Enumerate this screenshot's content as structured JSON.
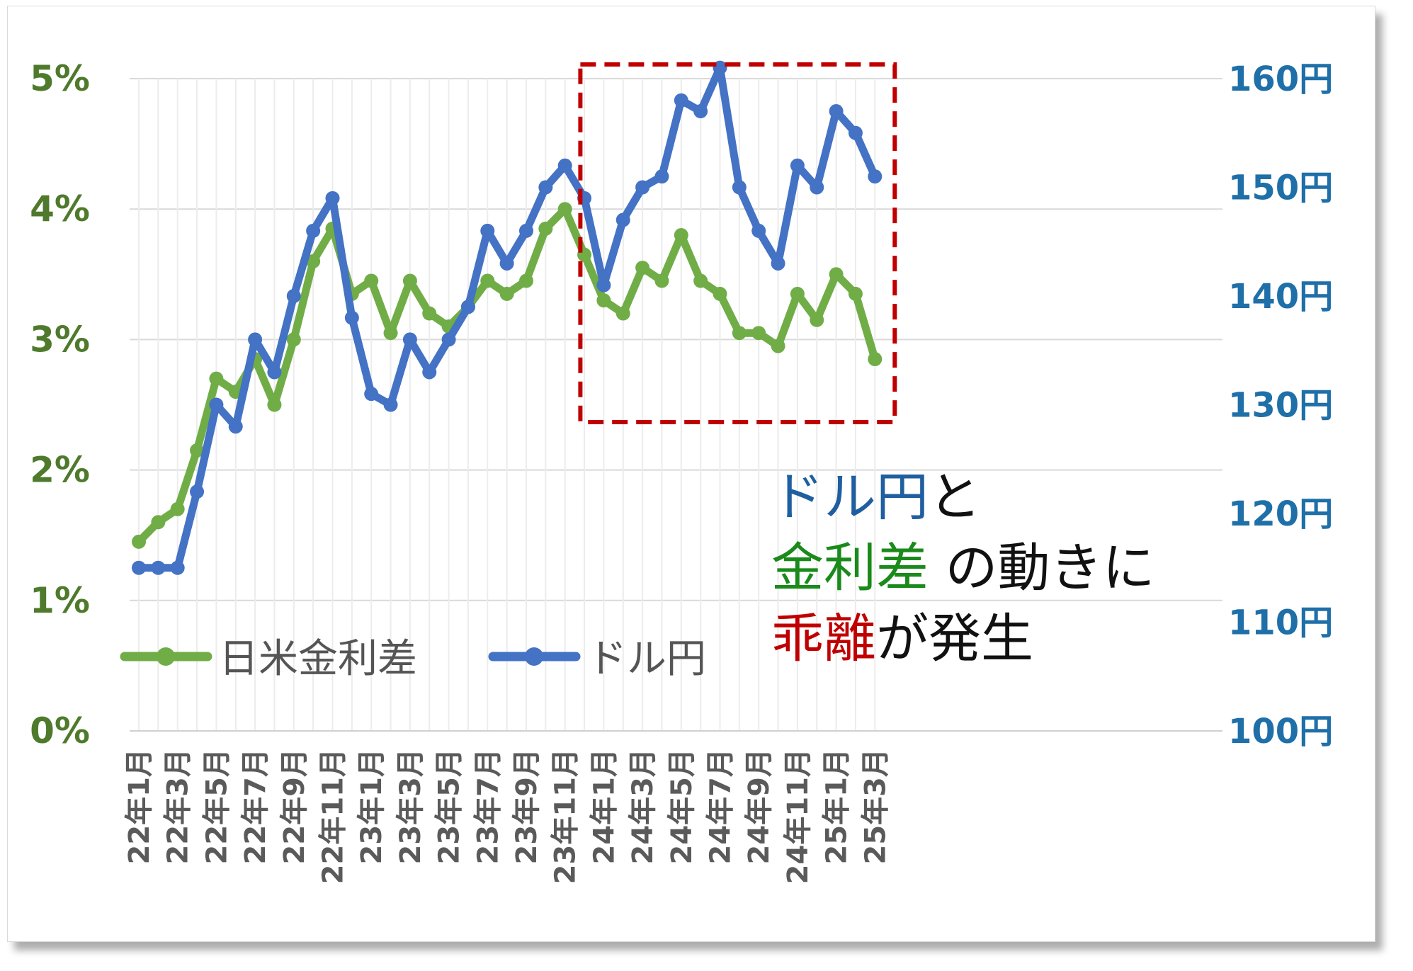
{
  "chart_data": {
    "type": "line",
    "title": "",
    "xlabel": "",
    "ylabel_left": "",
    "ylabel_right": "",
    "x": [
      "22年1月",
      "22年2月",
      "22年3月",
      "22年4月",
      "22年5月",
      "22年6月",
      "22年7月",
      "22年8月",
      "22年9月",
      "22年10月",
      "22年11月",
      "22年12月",
      "23年1月",
      "23年2月",
      "23年3月",
      "23年4月",
      "23年5月",
      "23年6月",
      "23年7月",
      "23年8月",
      "23年9月",
      "23年10月",
      "23年11月",
      "23年12月",
      "24年1月",
      "24年2月",
      "24年3月",
      "24年4月",
      "24年5月",
      "24年6月",
      "24年7月",
      "24年8月",
      "24年9月",
      "24年10月",
      "24年11月",
      "24年12月",
      "25年1月",
      "25年2月",
      "25年3月"
    ],
    "x_tick_labels": [
      "22年1月",
      "22年3月",
      "22年5月",
      "22年7月",
      "22年9月",
      "22年11月",
      "23年1月",
      "23年3月",
      "23年5月",
      "23年7月",
      "23年9月",
      "23年11月",
      "24年1月",
      "24年3月",
      "24年5月",
      "24年7月",
      "24年9月",
      "24年11月",
      "25年1月",
      "25年3月"
    ],
    "y_left_ticks": [
      "0%",
      "1%",
      "2%",
      "3%",
      "4%",
      "5%"
    ],
    "y_left_range": [
      0,
      5
    ],
    "y_right_ticks": [
      "100円",
      "110円",
      "120円",
      "130円",
      "140円",
      "150円",
      "160円"
    ],
    "y_right_range": [
      100,
      160
    ],
    "grid": true,
    "legend_position": "bottom-left",
    "series": [
      {
        "name": "日米金利差",
        "axis": "left",
        "color": "#70ad47",
        "values": [
          1.45,
          1.6,
          1.7,
          2.15,
          2.7,
          2.6,
          2.85,
          2.5,
          3.0,
          3.6,
          3.85,
          3.35,
          3.45,
          3.05,
          3.45,
          3.2,
          3.1,
          3.25,
          3.45,
          3.35,
          3.45,
          3.85,
          4.0,
          3.65,
          3.3,
          3.2,
          3.55,
          3.45,
          3.8,
          3.45,
          3.35,
          3.05,
          3.05,
          2.95,
          3.35,
          3.15,
          3.5,
          3.35,
          2.85
        ]
      },
      {
        "name": "ドル円",
        "axis": "right",
        "color": "#4472c4",
        "values": [
          115,
          115,
          115,
          122,
          130,
          128,
          136,
          133,
          140,
          146,
          149,
          138,
          131,
          130,
          136,
          133,
          136,
          139,
          146,
          143,
          146,
          150,
          152,
          149,
          141,
          147,
          150,
          151,
          158,
          157,
          161,
          150,
          146,
          143,
          152,
          150,
          157,
          155,
          151
        ]
      }
    ],
    "annotation": {
      "box_color": "#c00000",
      "box_range": [
        "24年1月",
        "25年3月"
      ],
      "lines": [
        [
          {
            "text": "ドル円",
            "color": "#1f5fa0"
          },
          {
            "text": "と",
            "color": "#111111"
          }
        ],
        [
          {
            "text": "金利差",
            "color": "#1a8a1a"
          },
          {
            "text": " の動きに",
            "color": "#111111"
          }
        ],
        [
          {
            "text": "乖離",
            "color": "#c00000"
          },
          {
            "text": "が発生",
            "color": "#111111"
          }
        ]
      ]
    }
  }
}
